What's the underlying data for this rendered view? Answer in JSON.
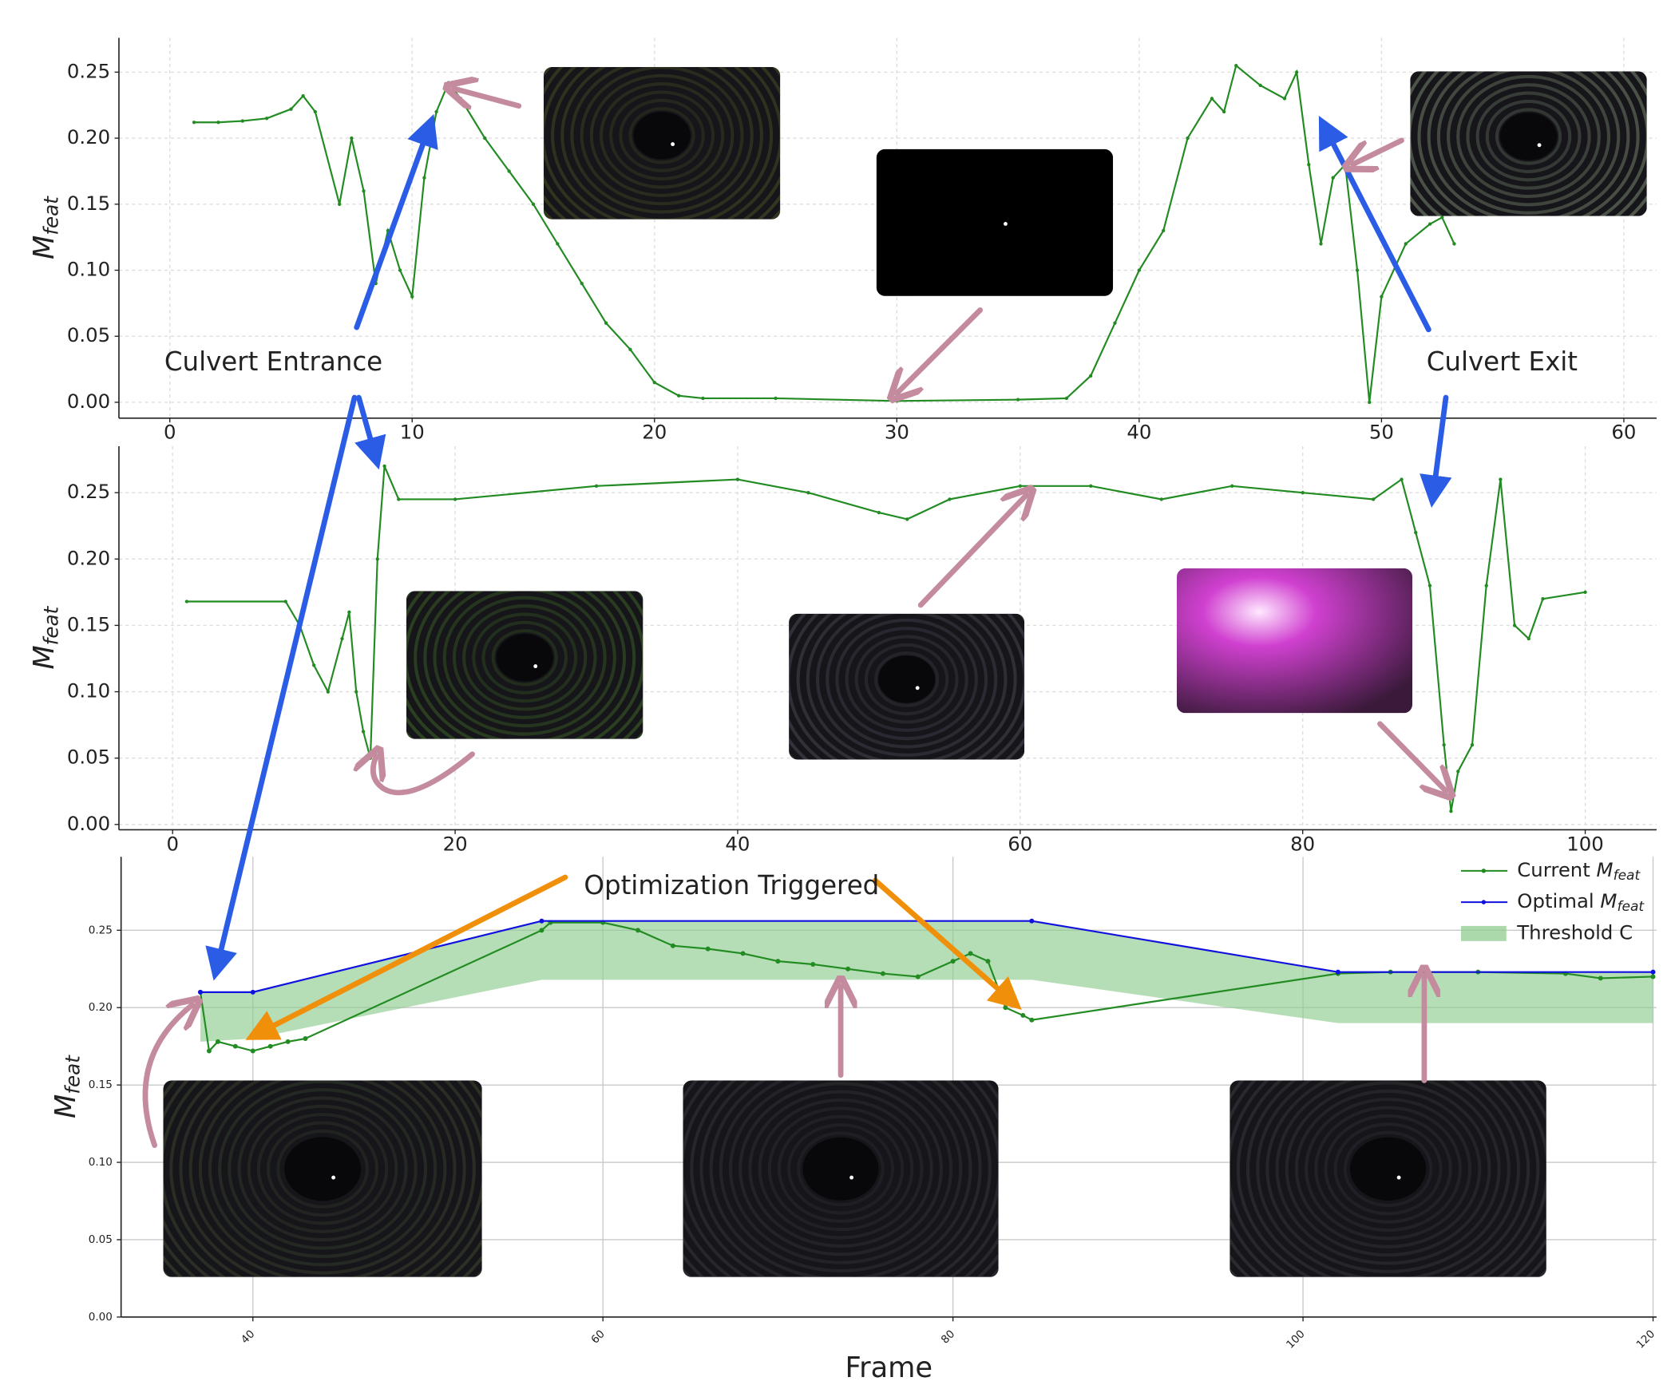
{
  "chart_data": [
    {
      "type": "line",
      "ylabel": "M_feat",
      "xlim": [
        -2.1,
        61.35
      ],
      "ylim": [
        -0.012,
        0.276
      ],
      "xticks": [
        0,
        10,
        20,
        30,
        40,
        50,
        60
      ],
      "yticks": [
        {
          "value": 0,
          "label": "0.00"
        },
        {
          "value": 0.05,
          "label": "0.05"
        },
        {
          "value": 0.1,
          "label": "0.10"
        },
        {
          "value": 0.15,
          "label": "0.15"
        },
        {
          "value": 0.2,
          "label": "0.20"
        },
        {
          "value": 0.25,
          "label": "0.25"
        }
      ],
      "grid": true,
      "series": [
        {
          "color": "#228b22",
          "x": [
            1,
            2,
            3,
            4,
            5,
            5.5,
            6,
            7,
            7.5,
            8,
            8.5,
            9,
            9.5,
            10,
            10.5,
            11,
            11.5,
            12,
            13,
            14,
            15,
            16,
            17,
            18,
            19,
            20,
            21,
            22,
            25,
            30,
            35,
            37,
            38,
            39,
            40,
            41,
            42,
            43,
            43.5,
            44,
            45,
            46,
            46.5,
            47,
            47.5,
            48,
            48.5,
            49,
            49.5,
            50,
            51,
            52,
            52.5,
            53
          ],
          "values": [
            0.212,
            0.212,
            0.213,
            0.215,
            0.222,
            0.232,
            0.22,
            0.15,
            0.2,
            0.16,
            0.09,
            0.13,
            0.1,
            0.08,
            0.17,
            0.22,
            0.242,
            0.23,
            0.2,
            0.175,
            0.15,
            0.12,
            0.09,
            0.06,
            0.04,
            0.015,
            0.005,
            0.003,
            0.003,
            0.001,
            0.002,
            0.003,
            0.02,
            0.06,
            0.1,
            0.13,
            0.2,
            0.23,
            0.22,
            0.255,
            0.24,
            0.23,
            0.25,
            0.18,
            0.12,
            0.17,
            0.18,
            0.1,
            0.0,
            0.08,
            0.12,
            0.135,
            0.14,
            0.12
          ]
        }
      ]
    },
    {
      "type": "line",
      "ylabel": "M_feat",
      "xlim": [
        -3.8,
        105.05
      ],
      "ylim": [
        -0.004,
        0.285
      ],
      "xticks": [
        0,
        20,
        40,
        60,
        80,
        100
      ],
      "yticks": [
        {
          "value": 0,
          "label": "0.00"
        },
        {
          "value": 0.05,
          "label": "0.05"
        },
        {
          "value": 0.1,
          "label": "0.10"
        },
        {
          "value": 0.15,
          "label": "0.15"
        },
        {
          "value": 0.2,
          "label": "0.20"
        },
        {
          "value": 0.25,
          "label": "0.25"
        }
      ],
      "grid": true,
      "series": [
        {
          "color": "#228b22",
          "x": [
            1,
            8,
            9,
            10,
            11,
            12,
            12.5,
            13,
            13.5,
            14,
            14.5,
            15,
            16,
            20,
            30,
            40,
            45,
            50,
            52,
            55,
            60,
            65,
            70,
            75,
            80,
            85,
            87,
            88,
            89,
            90,
            90.5,
            91,
            92,
            93,
            94,
            95,
            96,
            97,
            100
          ],
          "values": [
            0.168,
            0.168,
            0.15,
            0.12,
            0.1,
            0.14,
            0.16,
            0.1,
            0.07,
            0.05,
            0.2,
            0.27,
            0.245,
            0.245,
            0.255,
            0.26,
            0.25,
            0.235,
            0.23,
            0.245,
            0.255,
            0.255,
            0.245,
            0.255,
            0.25,
            0.245,
            0.26,
            0.22,
            0.18,
            0.06,
            0.01,
            0.04,
            0.06,
            0.18,
            0.26,
            0.15,
            0.14,
            0.17,
            0.175
          ]
        }
      ]
    },
    {
      "type": "line",
      "ylabel": "M_feat",
      "xlabel": "Frame",
      "xlim": [
        32.47,
        120.2
      ],
      "ylim": [
        0,
        0.2975
      ],
      "xticks": [
        40,
        60,
        80,
        100,
        120
      ],
      "yticks": [
        {
          "value": 0,
          "label": "0.00"
        },
        {
          "value": 0.05,
          "label": "0.05"
        },
        {
          "value": 0.1,
          "label": "0.10"
        },
        {
          "value": 0.15,
          "label": "0.15"
        },
        {
          "value": 0.2,
          "label": "0.20"
        },
        {
          "value": 0.25,
          "label": "0.25"
        }
      ],
      "grid": true,
      "series": [
        {
          "name": "Current M_feat",
          "color": "#228b22",
          "x": [
            37,
            37.5,
            38,
            39,
            40,
            41,
            42,
            43,
            56.5,
            57,
            60,
            62,
            64,
            66,
            68,
            70,
            72,
            74,
            76,
            78,
            80,
            81,
            82,
            83,
            84,
            84.5,
            102,
            105,
            110,
            115,
            117,
            120
          ],
          "values": [
            0.21,
            0.172,
            0.178,
            0.175,
            0.172,
            0.175,
            0.178,
            0.18,
            0.25,
            0.255,
            0.255,
            0.25,
            0.24,
            0.238,
            0.235,
            0.23,
            0.228,
            0.225,
            0.222,
            0.22,
            0.23,
            0.235,
            0.23,
            0.2,
            0.195,
            0.192,
            0.222,
            0.223,
            0.223,
            0.222,
            0.219,
            0.22
          ]
        },
        {
          "name": "Optimal M_feat",
          "color": "#1010e0",
          "x": [
            37,
            40,
            56.5,
            84.5,
            102,
            120
          ],
          "values": [
            0.21,
            0.21,
            0.256,
            0.256,
            0.223,
            0.223
          ]
        },
        {
          "name": "Threshold C",
          "color": "#8fcc8f",
          "kind": "band",
          "x": [
            37,
            40,
            56.5,
            84.5,
            102,
            120
          ],
          "values": [
            0.178,
            0.18,
            0.218,
            0.218,
            0.19,
            0.19
          ],
          "upper": [
            0.21,
            0.21,
            0.256,
            0.256,
            0.223,
            0.223
          ]
        }
      ]
    }
  ],
  "annotations": [
    "Culvert Entrance",
    "Culvert Exit",
    "Optimization Triggered"
  ]
}
